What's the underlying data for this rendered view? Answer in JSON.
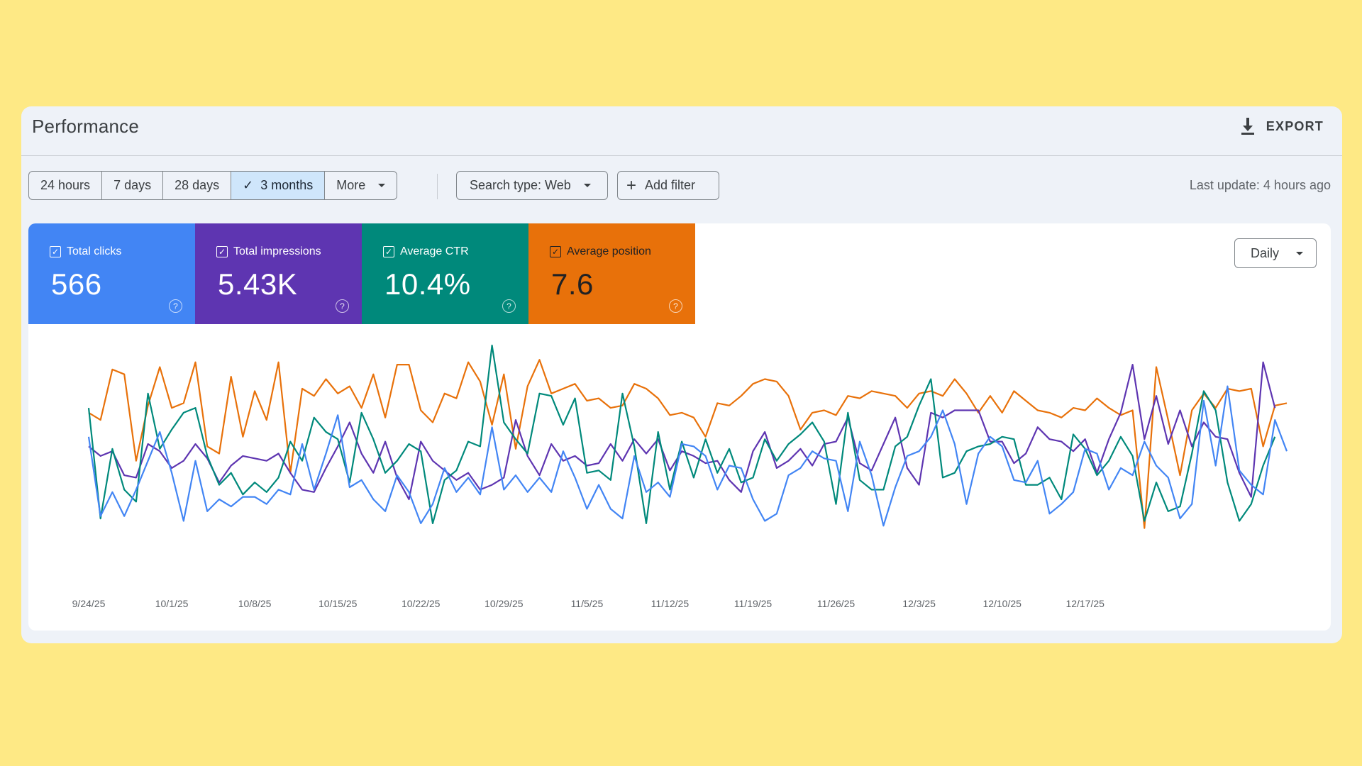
{
  "header": {
    "title": "Performance",
    "export_label": "EXPORT"
  },
  "filters": {
    "date_ranges": [
      {
        "label": "24 hours",
        "active": false
      },
      {
        "label": "7 days",
        "active": false
      },
      {
        "label": "28 days",
        "active": false
      },
      {
        "label": "3 months",
        "active": true
      },
      {
        "label": "More",
        "active": false
      }
    ],
    "search_type": "Search type: Web",
    "add_filter": "Add filter",
    "last_update": "Last update: 4 hours ago"
  },
  "metrics": [
    {
      "label": "Total clicks",
      "value": "566",
      "color": "#4285f4"
    },
    {
      "label": "Total impressions",
      "value": "5.43K",
      "color": "#5e35b1"
    },
    {
      "label": "Average CTR",
      "value": "10.4%",
      "color": "#00897b"
    },
    {
      "label": "Average position",
      "value": "7.6",
      "color": "#e8710a"
    }
  ],
  "granularity": "Daily",
  "chart_data": {
    "type": "line",
    "x_ticks": [
      "9/24/25",
      "10/1/25",
      "10/8/25",
      "10/15/25",
      "10/22/25",
      "10/29/25",
      "11/5/25",
      "11/12/25",
      "11/19/25",
      "11/26/25",
      "12/3/25",
      "12/10/25",
      "12/17/25"
    ],
    "y_axis_labels": false,
    "series": [
      {
        "name": "Average position",
        "color": "#e8710a",
        "values": [
          0.72,
          0.69,
          0.9,
          0.88,
          0.52,
          0.75,
          0.91,
          0.74,
          0.76,
          0.93,
          0.58,
          0.55,
          0.87,
          0.62,
          0.81,
          0.69,
          0.93,
          0.47,
          0.82,
          0.79,
          0.86,
          0.8,
          0.83,
          0.74,
          0.88,
          0.7,
          0.92,
          0.92,
          0.73,
          0.68,
          0.8,
          0.78,
          0.93,
          0.85,
          0.67,
          0.88,
          0.57,
          0.83,
          0.94,
          0.8,
          0.82,
          0.84,
          0.77,
          0.78,
          0.74,
          0.75,
          0.84,
          0.82,
          0.78,
          0.71,
          0.72,
          0.7,
          0.62,
          0.76,
          0.75,
          0.79,
          0.84,
          0.86,
          0.85,
          0.79,
          0.65,
          0.72,
          0.73,
          0.71,
          0.79,
          0.78,
          0.81,
          0.8,
          0.79,
          0.74,
          0.8,
          0.81,
          0.79,
          0.86,
          0.8,
          0.72,
          0.79,
          0.72,
          0.81,
          0.77,
          0.73,
          0.72,
          0.7,
          0.74,
          0.73,
          0.78,
          0.74,
          0.71,
          0.73,
          0.24,
          0.91,
          0.69,
          0.46,
          0.73,
          0.8,
          0.74,
          0.82,
          0.81,
          0.82,
          0.58,
          0.75,
          0.76
        ]
      },
      {
        "name": "Total impressions",
        "color": "#5e35b1",
        "values": [
          0.58,
          0.54,
          0.56,
          0.46,
          0.45,
          0.59,
          0.56,
          0.49,
          0.52,
          0.59,
          0.53,
          0.43,
          0.5,
          0.54,
          0.53,
          0.52,
          0.55,
          0.47,
          0.4,
          0.39,
          0.49,
          0.58,
          0.68,
          0.55,
          0.47,
          0.6,
          0.45,
          0.36,
          0.6,
          0.52,
          0.48,
          0.44,
          0.47,
          0.4,
          0.42,
          0.45,
          0.69,
          0.54,
          0.46,
          0.59,
          0.52,
          0.54,
          0.5,
          0.51,
          0.59,
          0.52,
          0.61,
          0.55,
          0.61,
          0.48,
          0.56,
          0.54,
          0.51,
          0.52,
          0.44,
          0.39,
          0.56,
          0.64,
          0.49,
          0.52,
          0.57,
          0.5,
          0.59,
          0.6,
          0.7,
          0.51,
          0.48,
          0.59,
          0.7,
          0.49,
          0.42,
          0.72,
          0.7,
          0.73,
          0.73,
          0.73,
          0.6,
          0.6,
          0.51,
          0.55,
          0.66,
          0.61,
          0.6,
          0.56,
          0.61,
          0.47,
          0.61,
          0.72,
          0.92,
          0.61,
          0.79,
          0.59,
          0.73,
          0.58,
          0.68,
          0.62,
          0.61,
          0.47,
          0.37,
          0.93,
          0.74
        ]
      },
      {
        "name": "Average CTR",
        "color": "#00897b",
        "values": [
          0.74,
          0.28,
          0.57,
          0.4,
          0.35,
          0.8,
          0.57,
          0.65,
          0.72,
          0.74,
          0.54,
          0.42,
          0.47,
          0.38,
          0.43,
          0.39,
          0.45,
          0.6,
          0.52,
          0.7,
          0.64,
          0.61,
          0.43,
          0.72,
          0.61,
          0.47,
          0.52,
          0.59,
          0.56,
          0.26,
          0.44,
          0.48,
          0.6,
          0.58,
          1.0,
          0.68,
          0.61,
          0.55,
          0.8,
          0.79,
          0.67,
          0.78,
          0.47,
          0.48,
          0.44,
          0.8,
          0.58,
          0.26,
          0.64,
          0.4,
          0.6,
          0.45,
          0.61,
          0.47,
          0.57,
          0.43,
          0.45,
          0.61,
          0.52,
          0.59,
          0.63,
          0.68,
          0.6,
          0.34,
          0.72,
          0.44,
          0.4,
          0.4,
          0.58,
          0.62,
          0.75,
          0.86,
          0.45,
          0.47,
          0.56,
          0.58,
          0.59,
          0.62,
          0.61,
          0.42,
          0.42,
          0.45,
          0.36,
          0.63,
          0.57,
          0.46,
          0.52,
          0.62,
          0.54,
          0.27,
          0.43,
          0.31,
          0.33,
          0.55,
          0.81,
          0.73,
          0.43,
          0.27,
          0.34,
          0.5,
          0.62
        ]
      },
      {
        "name": "Total clicks",
        "color": "#4285f4",
        "values": [
          0.62,
          0.29,
          0.39,
          0.29,
          0.4,
          0.52,
          0.64,
          0.47,
          0.27,
          0.52,
          0.31,
          0.36,
          0.33,
          0.37,
          0.37,
          0.34,
          0.4,
          0.38,
          0.59,
          0.4,
          0.55,
          0.71,
          0.41,
          0.44,
          0.36,
          0.31,
          0.46,
          0.39,
          0.26,
          0.34,
          0.49,
          0.39,
          0.45,
          0.38,
          0.66,
          0.4,
          0.46,
          0.39,
          0.45,
          0.39,
          0.56,
          0.45,
          0.32,
          0.42,
          0.32,
          0.28,
          0.54,
          0.39,
          0.43,
          0.37,
          0.59,
          0.58,
          0.54,
          0.4,
          0.5,
          0.49,
          0.36,
          0.27,
          0.3,
          0.46,
          0.49,
          0.56,
          0.53,
          0.52,
          0.31,
          0.6,
          0.46,
          0.25,
          0.41,
          0.54,
          0.56,
          0.62,
          0.73,
          0.59,
          0.34,
          0.55,
          0.62,
          0.58,
          0.44,
          0.43,
          0.52,
          0.3,
          0.34,
          0.39,
          0.57,
          0.55,
          0.4,
          0.49,
          0.46,
          0.6,
          0.5,
          0.45,
          0.28,
          0.34,
          0.77,
          0.5,
          0.83,
          0.48,
          0.42,
          0.38,
          0.69,
          0.56
        ]
      }
    ]
  }
}
